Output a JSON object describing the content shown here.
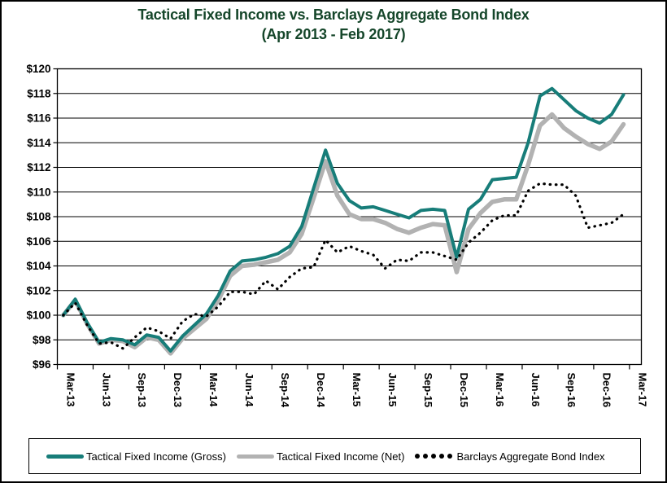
{
  "window": {
    "background": "#ffffff",
    "border_color": "#000000"
  },
  "title": {
    "line1": "Tactical Fixed Income vs. Barclays Aggregate Bond Index",
    "line2": "(Apr 2013 - Feb 2017)",
    "color": "#15462a"
  },
  "legend": {
    "items": [
      {
        "label": "Tactical Fixed Income (Gross)",
        "swatch": "solid-teal-line",
        "color": "#177d79"
      },
      {
        "label": "Tactical Fixed Income (Net)",
        "swatch": "solid-gray-line",
        "color": "#b2b2b2"
      },
      {
        "label": "Barclays Aggregate Bond Index",
        "swatch": "dotted-black-line",
        "color": "#000000"
      }
    ]
  },
  "chart_data": {
    "type": "line",
    "title": "Tactical Fixed Income vs. Barclays Aggregate Bond Index",
    "subtitle": "(Apr 2013 - Feb 2017)",
    "grid": "horizontal",
    "legend_position": "bottom",
    "ylim": [
      96,
      120
    ],
    "y_step": 2,
    "y_tick_labels": [
      "$96",
      "$98",
      "$100",
      "$102",
      "$104",
      "$106",
      "$108",
      "$110",
      "$112",
      "$114",
      "$116",
      "$118",
      "$120"
    ],
    "x_tick_labels": [
      "Mar-13",
      "Jun-13",
      "Sep-13",
      "Dec-13",
      "Mar-14",
      "Jun-14",
      "Sep-14",
      "Dec-14",
      "Mar-15",
      "Jun-15",
      "Sep-15",
      "Dec-15",
      "Mar-16",
      "Jun-16",
      "Sep-16",
      "Dec-16",
      "Mar-17"
    ],
    "x": [
      "Mar-13",
      "Apr-13",
      "May-13",
      "Jun-13",
      "Jul-13",
      "Aug-13",
      "Sep-13",
      "Oct-13",
      "Nov-13",
      "Dec-13",
      "Jan-14",
      "Feb-14",
      "Mar-14",
      "Apr-14",
      "May-14",
      "Jun-14",
      "Jul-14",
      "Aug-14",
      "Sep-14",
      "Oct-14",
      "Nov-14",
      "Dec-14",
      "Jan-15",
      "Feb-15",
      "Mar-15",
      "Apr-15",
      "May-15",
      "Jun-15",
      "Jul-15",
      "Aug-15",
      "Sep-15",
      "Oct-15",
      "Nov-15",
      "Dec-15",
      "Jan-16",
      "Feb-16",
      "Mar-16",
      "Apr-16",
      "May-16",
      "Jun-16",
      "Jul-16",
      "Aug-16",
      "Sep-16",
      "Oct-16",
      "Nov-16",
      "Dec-16",
      "Jan-17",
      "Feb-17"
    ],
    "series": [
      {
        "name": "Tactical Fixed Income (Net)",
        "color": "#b2b2b2",
        "style": "solid",
        "values": [
          100.0,
          101.2,
          99.3,
          97.7,
          98.0,
          97.9,
          97.4,
          98.2,
          98.0,
          96.9,
          98.1,
          98.9,
          99.7,
          101.2,
          103.2,
          104.0,
          104.1,
          104.3,
          104.5,
          105.1,
          106.6,
          109.5,
          112.5,
          109.7,
          108.2,
          107.8,
          107.8,
          107.5,
          107.0,
          106.7,
          107.1,
          107.4,
          107.3,
          103.5,
          107.0,
          108.3,
          109.2,
          109.4,
          109.4,
          112.2,
          115.4,
          116.3,
          115.2,
          114.5,
          113.9,
          113.5,
          114.1,
          115.5
        ]
      },
      {
        "name": "Tactical Fixed Income (Gross)",
        "color": "#177d79",
        "style": "solid",
        "values": [
          100.0,
          101.3,
          99.4,
          97.8,
          98.1,
          98.0,
          97.6,
          98.4,
          98.2,
          97.1,
          98.3,
          99.2,
          100.1,
          101.6,
          103.6,
          104.4,
          104.5,
          104.7,
          105.0,
          105.6,
          107.2,
          110.3,
          113.4,
          110.7,
          109.3,
          108.7,
          108.8,
          108.5,
          108.2,
          107.9,
          108.5,
          108.6,
          108.5,
          104.7,
          108.6,
          109.4,
          111.0,
          111.1,
          111.2,
          114.0,
          117.8,
          118.4,
          117.5,
          116.6,
          116.0,
          115.6,
          116.3,
          117.9
        ]
      },
      {
        "name": "Barclays Aggregate Bond Index",
        "color": "#000000",
        "style": "dotted",
        "values": [
          100.0,
          101.0,
          99.2,
          97.7,
          97.8,
          97.3,
          98.2,
          99.0,
          98.7,
          98.1,
          99.5,
          100.1,
          99.9,
          100.7,
          101.9,
          101.9,
          101.7,
          102.8,
          102.1,
          103.1,
          103.8,
          103.9,
          106.1,
          105.1,
          105.6,
          105.2,
          104.9,
          103.8,
          104.5,
          104.4,
          105.1,
          105.1,
          104.8,
          104.5,
          105.9,
          106.7,
          107.7,
          108.1,
          108.1,
          110.1,
          110.7,
          110.6,
          110.6,
          109.7,
          107.1,
          107.3,
          107.5,
          108.2
        ]
      }
    ]
  }
}
